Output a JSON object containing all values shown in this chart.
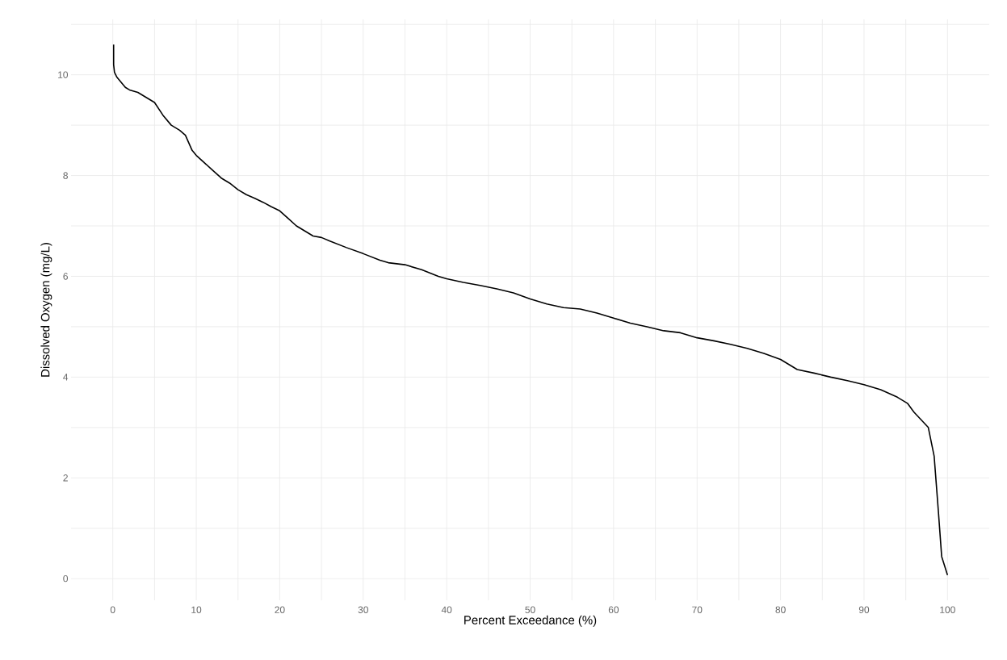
{
  "chart_data": {
    "type": "line",
    "xlabel": "Percent Exceedance (%)",
    "ylabel": "Dissolved Oxygen (mg/L)",
    "xlim": [
      -5,
      105
    ],
    "ylim": [
      -0.43,
      11.1
    ],
    "xticks": [
      0,
      {
        "value": 5,
        "label": null
      },
      10,
      {
        "value": 15,
        "label": null
      },
      20,
      {
        "value": 25,
        "label": null
      },
      30,
      {
        "value": 35,
        "label": null
      },
      40,
      {
        "value": 45,
        "label": null
      },
      50,
      {
        "value": 55,
        "label": null
      },
      60,
      {
        "value": 65,
        "label": null
      },
      70,
      {
        "value": 75,
        "label": null
      },
      80,
      {
        "value": 85,
        "label": null
      },
      90,
      {
        "value": 95,
        "label": null
      },
      100
    ],
    "yticks": [
      0,
      {
        "value": 1,
        "label": null
      },
      2,
      {
        "value": 3,
        "label": null
      },
      4,
      {
        "value": 5,
        "label": null
      },
      6,
      {
        "value": 7,
        "label": null
      },
      8,
      {
        "value": 9,
        "label": null
      },
      10,
      {
        "value": 11,
        "label": null
      }
    ],
    "grid": true,
    "marker": "none",
    "line_style": "solid",
    "series": [
      {
        "color": "#000000",
        "x": [
          0.1,
          0.1,
          0.2,
          0.5,
          1,
          1.5,
          2,
          3,
          4,
          5,
          6,
          7,
          8,
          8.7,
          9.5,
          10,
          11,
          12,
          13,
          14,
          15,
          16,
          17,
          18,
          19,
          20,
          21,
          22,
          23,
          24,
          25,
          26,
          28,
          30,
          32,
          33,
          35,
          37,
          39,
          40,
          42,
          44,
          46,
          48,
          50,
          52,
          54,
          56,
          58,
          60,
          62,
          64,
          66,
          68,
          70,
          72,
          74,
          76,
          78,
          80,
          81,
          82,
          84,
          86,
          88,
          90,
          92,
          94,
          95.2,
          96,
          97.7,
          98.4,
          98.9,
          99.3,
          100
        ],
        "values": [
          10.6,
          10.2,
          10.05,
          9.95,
          9.85,
          9.75,
          9.7,
          9.65,
          9.55,
          9.45,
          9.2,
          9.0,
          8.9,
          8.8,
          8.5,
          8.4,
          8.25,
          8.1,
          7.95,
          7.85,
          7.72,
          7.62,
          7.55,
          7.47,
          7.38,
          7.3,
          7.15,
          7.0,
          6.9,
          6.8,
          6.77,
          6.7,
          6.57,
          6.45,
          6.32,
          6.27,
          6.23,
          6.13,
          6.0,
          5.95,
          5.88,
          5.82,
          5.75,
          5.67,
          5.55,
          5.45,
          5.38,
          5.35,
          5.27,
          5.17,
          5.07,
          5.0,
          4.92,
          4.88,
          4.78,
          4.72,
          4.65,
          4.57,
          4.47,
          4.35,
          4.25,
          4.15,
          4.08,
          4.0,
          3.93,
          3.85,
          3.75,
          3.6,
          3.48,
          3.3,
          3.0,
          2.43,
          1.35,
          0.44,
          0.07
        ]
      }
    ]
  }
}
